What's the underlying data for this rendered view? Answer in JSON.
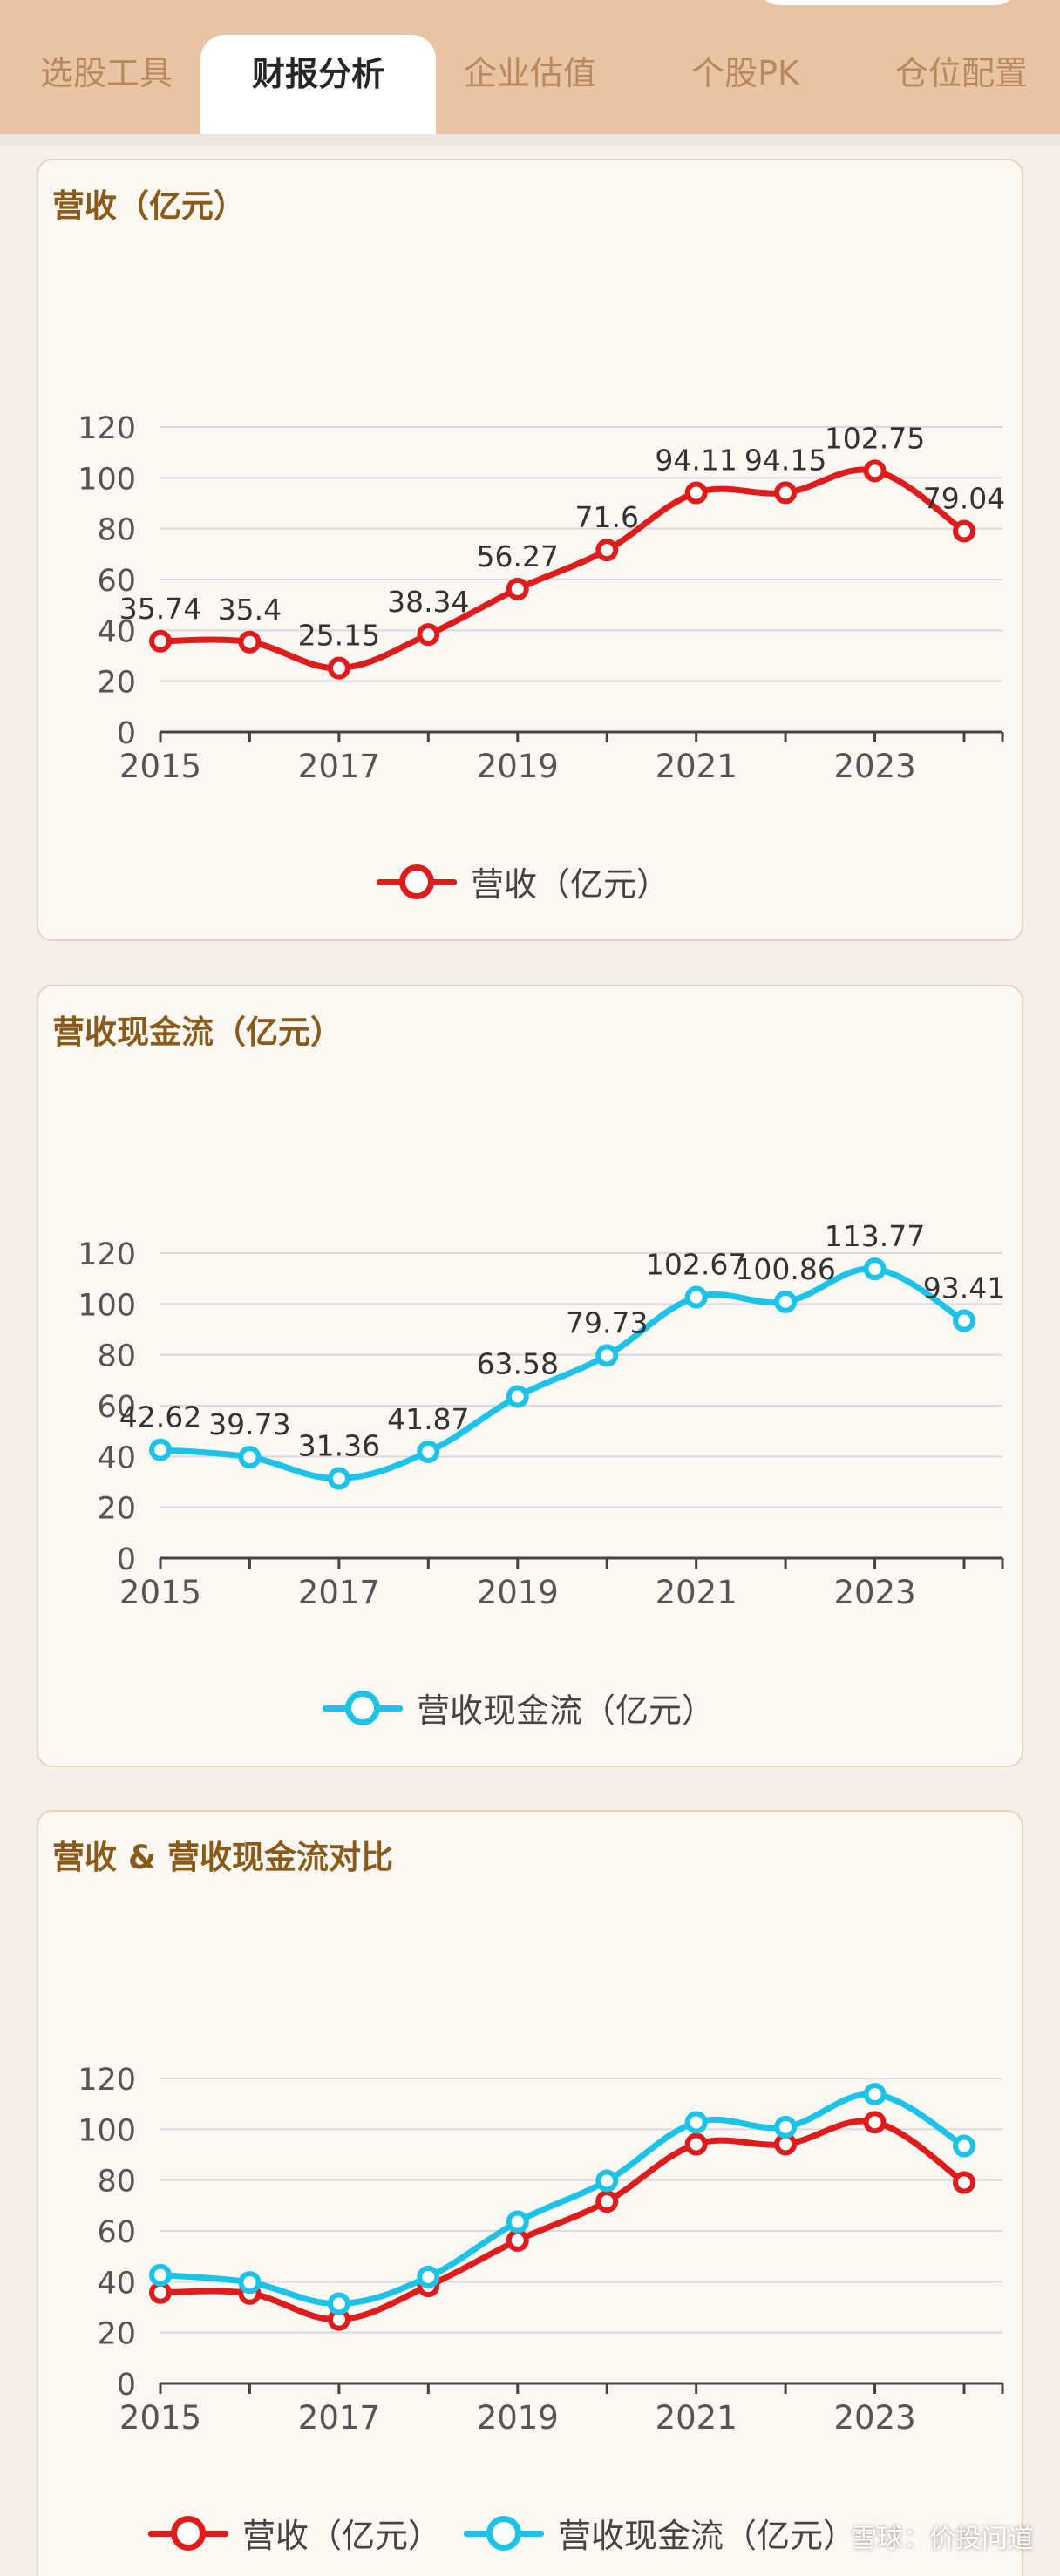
{
  "tabs": [
    {
      "label": "选股工具",
      "active": false
    },
    {
      "label": "财报分析",
      "active": true
    },
    {
      "label": "企业估值",
      "active": false
    },
    {
      "label": "个股PK",
      "active": false
    },
    {
      "label": "仓位配置",
      "active": false
    }
  ],
  "colors": {
    "revenue": "#e01b1b",
    "cashflow": "#1cc3e8",
    "title": "#8a5a18"
  },
  "cards": [
    {
      "title": "营收（亿元）",
      "legend": [
        {
          "label": "营收（亿元）",
          "color": "#e01b1b"
        }
      ]
    },
    {
      "title": "营收现金流（亿元）",
      "legend": [
        {
          "label": "营收现金流（亿元）",
          "color": "#1cc3e8"
        }
      ]
    },
    {
      "title": "营收 & 营收现金流对比",
      "legend": [
        {
          "label": "营收（亿元）",
          "color": "#e01b1b"
        },
        {
          "label": "营收现金流（亿元）",
          "color": "#1cc3e8"
        }
      ]
    }
  ],
  "watermark": "雪球：价投问道",
  "chart_data": [
    {
      "type": "line",
      "title": "营收（亿元）",
      "x": [
        2015,
        2016,
        2017,
        2018,
        2019,
        2020,
        2021,
        2022,
        2023,
        2024
      ],
      "x_tick_labels": [
        "2015",
        "2017",
        "2019",
        "2021",
        "2023"
      ],
      "y_ticks": [
        0,
        20,
        40,
        60,
        80,
        100,
        120
      ],
      "ylim": [
        0,
        120
      ],
      "series": [
        {
          "name": "营收（亿元）",
          "values": [
            35.74,
            35.4,
            25.15,
            38.34,
            56.27,
            71.6,
            94.11,
            94.15,
            102.75,
            79.04
          ],
          "labels": [
            "35.74",
            "35.4",
            "25.15",
            "38.34",
            "56.27",
            "71.6",
            "94.11",
            "94.15",
            "102.75",
            "79.04"
          ]
        }
      ],
      "legend": "bottom",
      "grid": true
    },
    {
      "type": "line",
      "title": "营收现金流（亿元）",
      "x": [
        2015,
        2016,
        2017,
        2018,
        2019,
        2020,
        2021,
        2022,
        2023,
        2024
      ],
      "x_tick_labels": [
        "2015",
        "2017",
        "2019",
        "2021",
        "2023"
      ],
      "y_ticks": [
        0,
        20,
        40,
        60,
        80,
        100,
        120
      ],
      "ylim": [
        0,
        120
      ],
      "series": [
        {
          "name": "营收现金流（亿元）",
          "values": [
            42.62,
            39.73,
            31.36,
            41.87,
            63.58,
            79.73,
            102.67,
            100.86,
            113.77,
            93.41
          ],
          "labels": [
            "42.62",
            "39.73",
            "31.36",
            "41.87",
            "63.58",
            "79.73",
            "102.67",
            "100.86",
            "113.77",
            "93.41"
          ]
        }
      ],
      "legend": "bottom",
      "grid": true
    },
    {
      "type": "line",
      "title": "营收 & 营收现金流对比",
      "x": [
        2015,
        2016,
        2017,
        2018,
        2019,
        2020,
        2021,
        2022,
        2023,
        2024
      ],
      "x_tick_labels": [
        "2015",
        "2017",
        "2019",
        "2021",
        "2023"
      ],
      "y_ticks": [
        0,
        20,
        40,
        60,
        80,
        100,
        120
      ],
      "ylim": [
        0,
        120
      ],
      "series": [
        {
          "name": "营收（亿元）",
          "values": [
            35.74,
            35.4,
            25.15,
            38.34,
            56.27,
            71.6,
            94.11,
            94.15,
            102.75,
            79.04
          ]
        },
        {
          "name": "营收现金流（亿元）",
          "values": [
            42.62,
            39.73,
            31.36,
            41.87,
            63.58,
            79.73,
            102.67,
            100.86,
            113.77,
            93.41
          ]
        }
      ],
      "legend": "bottom",
      "grid": true
    }
  ]
}
